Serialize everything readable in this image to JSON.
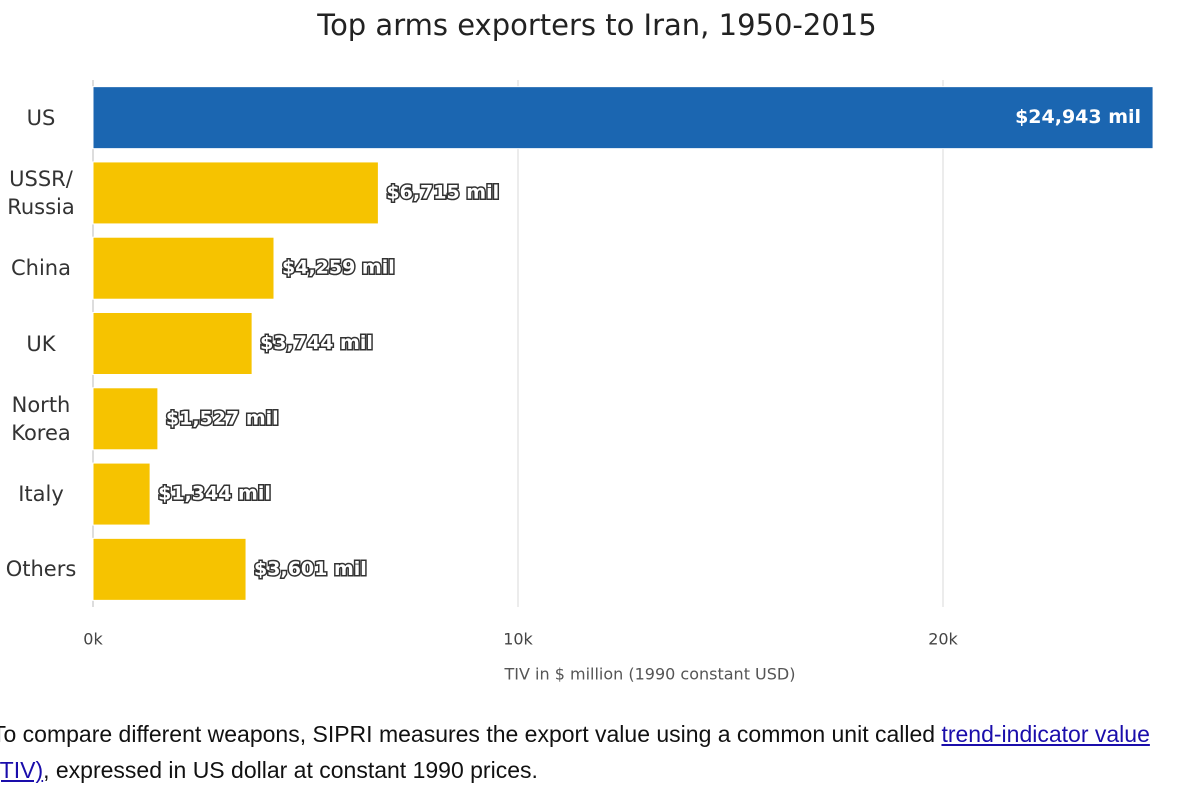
{
  "chart_data": {
    "type": "bar",
    "orientation": "horizontal",
    "title": "Top arms exporters to Iran, 1950-2015",
    "categories": [
      "US",
      "USSR/ Russia",
      "China",
      "UK",
      "North Korea",
      "Italy",
      "Others"
    ],
    "values": [
      24943,
      6715,
      4259,
      3744,
      1527,
      1344,
      3601
    ],
    "value_labels": [
      "$24,943 mil",
      "$6,715 mil",
      "$4,259 mil",
      "$3,744 mil",
      "$1,527 mil",
      "$1,344 mil",
      "$3,601 mil"
    ],
    "colors": [
      "#1b66b1",
      "#f6c300",
      "#f6c300",
      "#f6c300",
      "#f6c300",
      "#f6c300",
      "#f6c300"
    ],
    "xlim": [
      0,
      25000
    ],
    "xticks": [
      {
        "value": 0,
        "label": "0k"
      },
      {
        "value": 10000,
        "label": "10k"
      },
      {
        "value": 20000,
        "label": "20k"
      }
    ],
    "xlabel": "TIV in $ million (1990 constant USD)",
    "grid": true
  },
  "footnote": {
    "text_before": "To compare different weapons, SIPRI measures the export value using a common unit called ",
    "link": "trend-indicator value (TIV)",
    "text_after": ", expressed in US dollar at constant 1990 prices."
  }
}
